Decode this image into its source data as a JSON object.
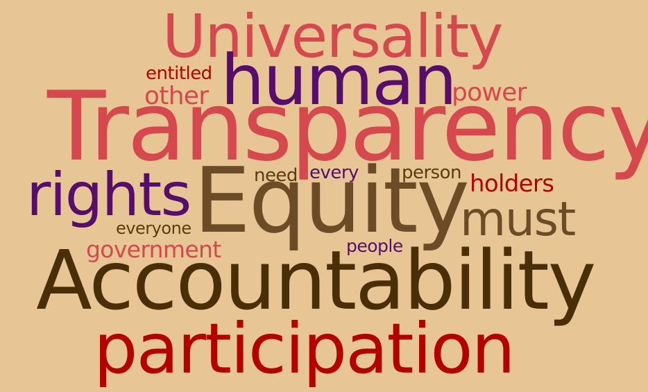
{
  "words": [
    {
      "text": "Universality",
      "color": "#d5484e"
    },
    {
      "text": "entitled",
      "color": "#b30000"
    },
    {
      "text": "human",
      "color": "#550e6b"
    },
    {
      "text": "other",
      "color": "#d5484e"
    },
    {
      "text": "power",
      "color": "#d5484e"
    },
    {
      "text": "Transparency",
      "color": "#d5484e"
    },
    {
      "text": "need",
      "color": "#5a3c12"
    },
    {
      "text": "every",
      "color": "#550e6b"
    },
    {
      "text": "person",
      "color": "#5a3c12"
    },
    {
      "text": "holders",
      "color": "#b30000"
    },
    {
      "text": "rights",
      "color": "#550e6b"
    },
    {
      "text": "Equity",
      "color": "#6b4c26"
    },
    {
      "text": "must",
      "color": "#6b4c26"
    },
    {
      "text": "everyone",
      "color": "#5a3c12"
    },
    {
      "text": "government",
      "color": "#d5484e"
    },
    {
      "text": "people",
      "color": "#550e6b"
    },
    {
      "text": "Accountability",
      "color": "#4a2e06"
    },
    {
      "text": "participation",
      "color": "#b30000"
    }
  ]
}
